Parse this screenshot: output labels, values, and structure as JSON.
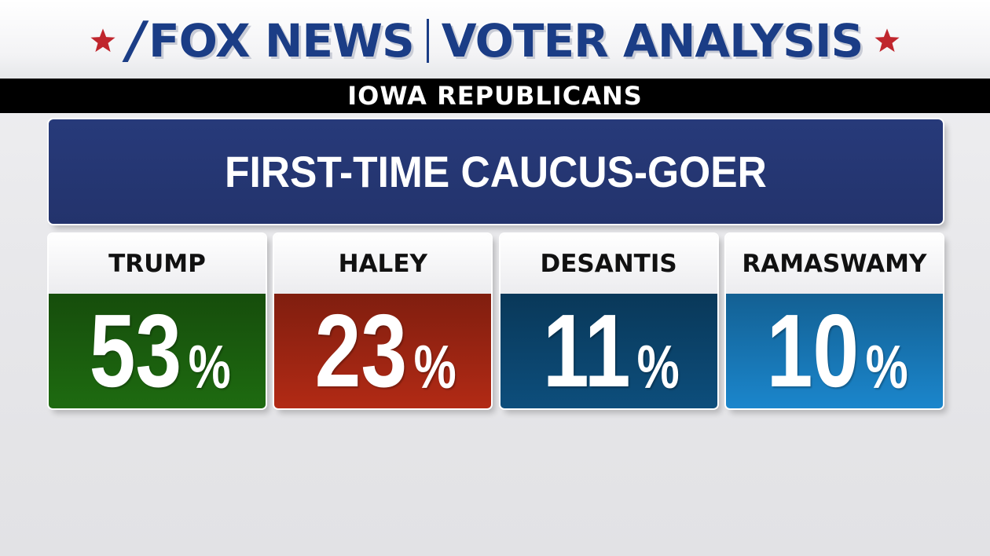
{
  "header": {
    "brand_left": "FOX NEWS",
    "brand_right": "VOTER ANALYSIS",
    "subtitle": "IOWA REPUBLICANS",
    "colors": {
      "brand_blue": "#1b3d86",
      "star_red": "#c0262d",
      "subbar": "#000000"
    },
    "icons": [
      "star-icon"
    ]
  },
  "chart_data": {
    "type": "bar",
    "title": "FIRST-TIME CAUCUS-GOER",
    "categories": [
      "TRUMP",
      "HALEY",
      "DESANTIS",
      "RAMASWAMY"
    ],
    "values": [
      53,
      23,
      11,
      10
    ],
    "unit": "%",
    "value_labels": [
      "53",
      "23",
      "11",
      "10"
    ],
    "colors": [
      "#1e6b10",
      "#b22a15",
      "#0d4e7c",
      "#1b86cc"
    ],
    "xlabel": "",
    "ylabel": "",
    "grid": false,
    "legend": "none"
  }
}
